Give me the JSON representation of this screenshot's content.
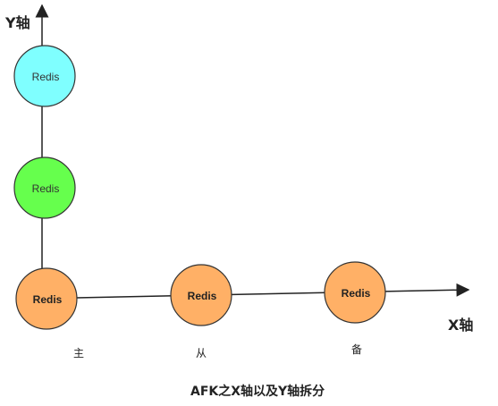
{
  "axes": {
    "y_label": "Y轴",
    "x_label": "X轴"
  },
  "nodes": {
    "y_top": {
      "label": "Redis",
      "fill": "#7FFFFF"
    },
    "y_mid": {
      "label": "Redis",
      "fill": "#66FF4D"
    },
    "master": {
      "label": "Redis",
      "fill": "#FFB066",
      "role": "主"
    },
    "slave": {
      "label": "Redis",
      "fill": "#FFB066",
      "role": "从"
    },
    "backup": {
      "label": "Redis",
      "fill": "#FFB066",
      "role": "备"
    }
  },
  "caption": "AFK之X轴以及Y轴拆分",
  "colors": {
    "stroke": "#222222"
  }
}
